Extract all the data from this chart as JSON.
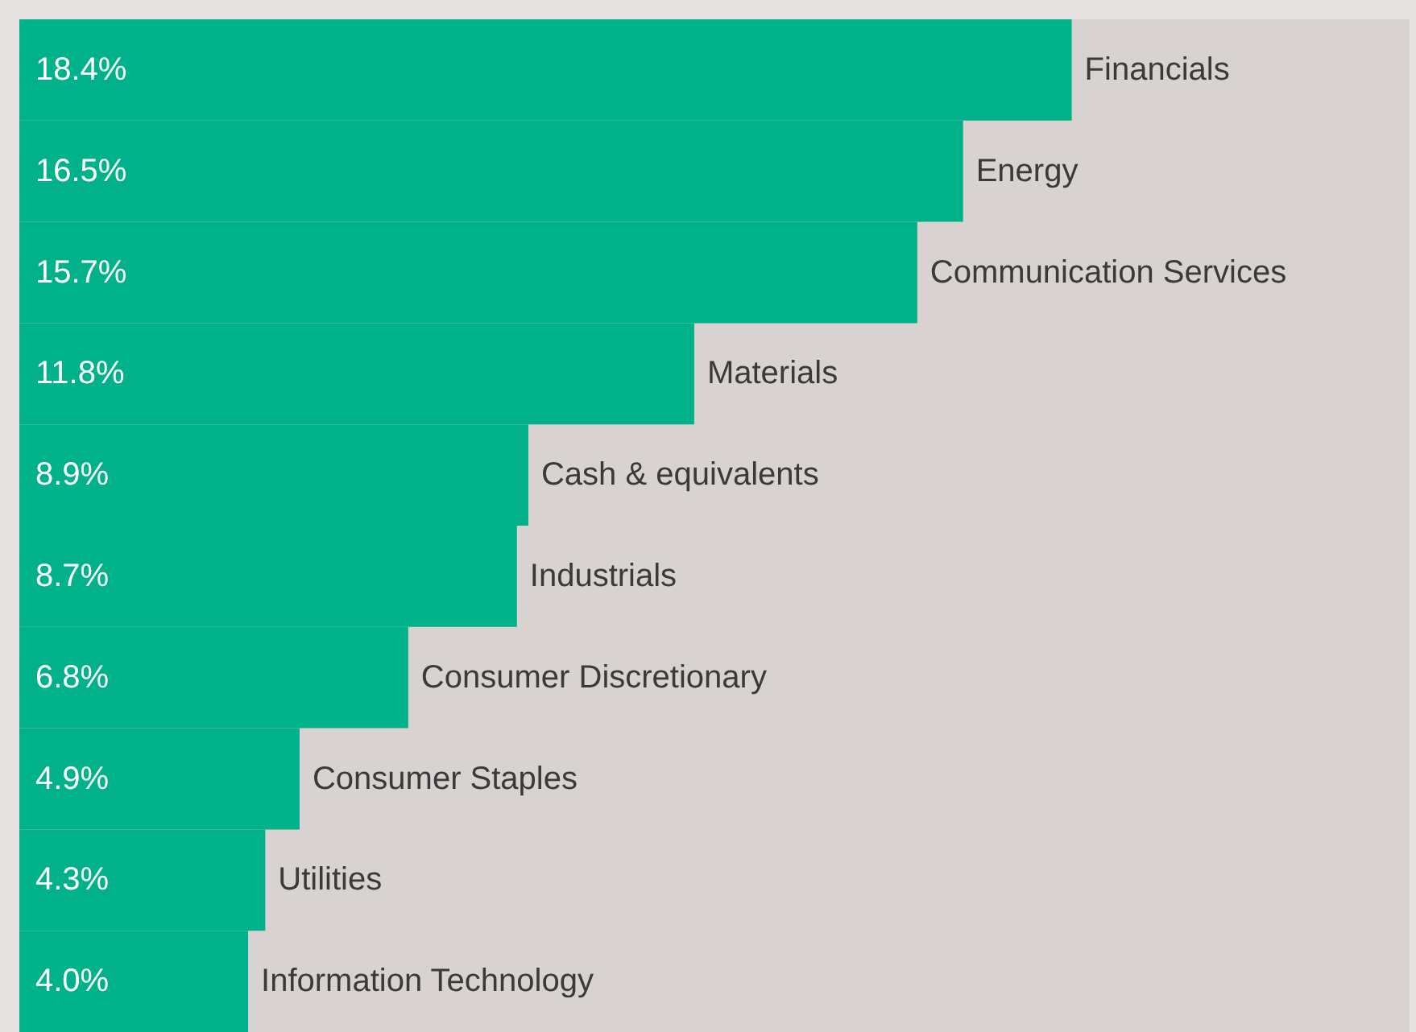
{
  "chart_data": {
    "type": "bar",
    "orientation": "horizontal",
    "categories": [
      "Financials",
      "Energy",
      "Communication Services",
      "Materials",
      "Cash & equivalents",
      "Industrials",
      "Consumer Discretionary",
      "Consumer Staples",
      "Utilities",
      "Information Technology"
    ],
    "values": [
      18.4,
      16.5,
      15.7,
      11.8,
      8.9,
      8.7,
      6.8,
      4.9,
      4.3,
      4.0
    ],
    "value_labels": [
      "18.4%",
      "16.5%",
      "15.7%",
      "11.8%",
      "8.9%",
      "8.7%",
      "6.8%",
      "4.9%",
      "4.3%",
      "4.0%"
    ],
    "color": "#00b189",
    "grid": false
  }
}
